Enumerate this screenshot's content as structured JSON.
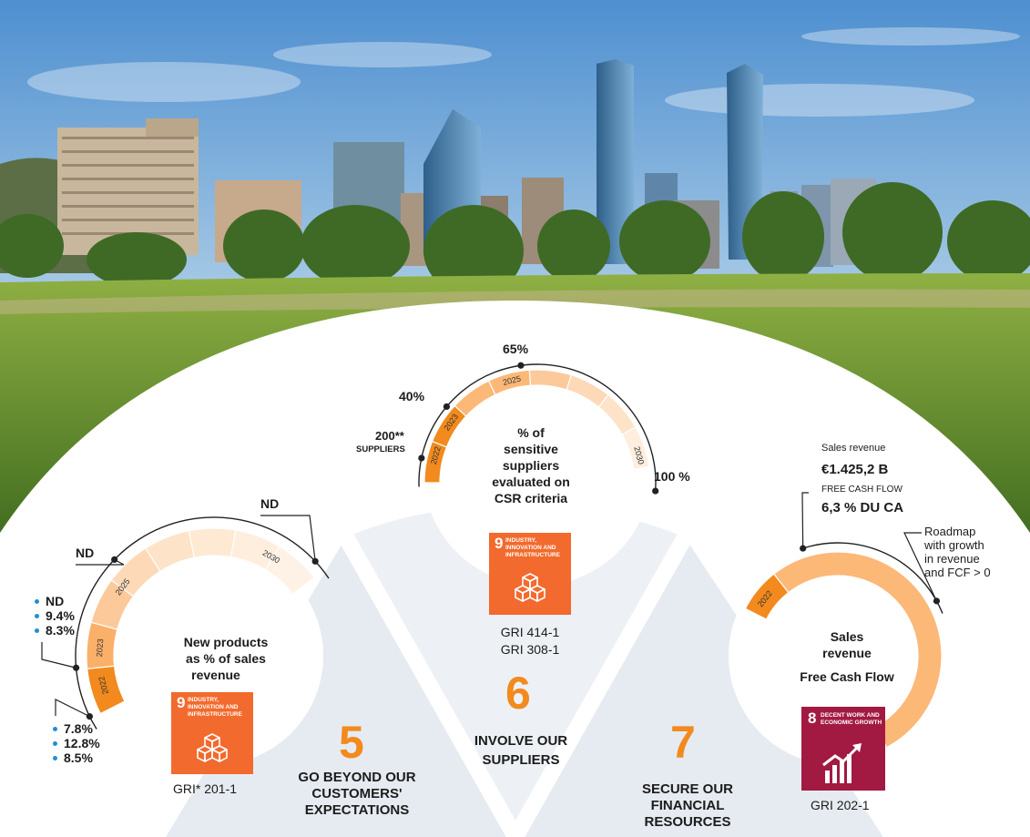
{
  "colors": {
    "orange_dark": "#f28a1e",
    "orange_light": "#fbb877",
    "sdg9": "#f26a2d",
    "sdg8": "#a21942",
    "bullet_blue": "#1f8fd6"
  },
  "pillars": [
    {
      "number": "5",
      "title_lines": [
        "GO BEYOND OUR",
        "CUSTOMERS'",
        "EXPECTATIONS"
      ],
      "kpi_lines": [
        "New products",
        "as % of sales",
        "revenue"
      ],
      "gauge": {
        "years": [
          "2022",
          "2023",
          "2025",
          "2030"
        ],
        "annotations": {
          "nd_2030": "ND",
          "nd_2025": "ND",
          "values_2023": [
            "ND",
            "9.4%",
            "8.3%"
          ],
          "values_2022": [
            "7.8%",
            "12.8%",
            "8.5%"
          ]
        }
      },
      "sdg": {
        "number": "9",
        "text": "INDUSTRY, INNOVATION AND INFRASTRUCTURE",
        "icon": "cubes-icon"
      },
      "gri": "GRI*  201-1"
    },
    {
      "number": "6",
      "title_lines": [
        "INVOLVE OUR",
        "SUPPLIERS"
      ],
      "kpi_lines": [
        "% of",
        "sensitive",
        "suppliers",
        "evaluated on",
        "CSR criteria"
      ],
      "gauge": {
        "years": [
          "2022",
          "2023",
          "2025",
          "2030"
        ],
        "annotations": {
          "baseline": "200**",
          "baseline_unit": "SUPPLIERS",
          "target_2023": "40%",
          "target_2025": "65%",
          "target_2030": "100 %"
        }
      },
      "sdg": {
        "number": "9",
        "text": "INDUSTRY, INNOVATION AND INFRASTRUCTURE",
        "icon": "cubes-icon"
      },
      "gri_lines": [
        "GRI 414-1",
        "GRI 308-1"
      ]
    },
    {
      "number": "7",
      "title_lines": [
        "SECURE OUR",
        "FINANCIAL",
        "RESOURCES"
      ],
      "kpi_lines": [
        "Sales",
        "revenue",
        "Free Cash Flow"
      ],
      "gauge": {
        "years": [
          "2022"
        ],
        "annotations": {
          "sales_label": "Sales revenue",
          "sales_value": "€1.425,2 B",
          "fcf_label": "FREE CASH FLOW",
          "fcf_value": "6,3 % DU CA",
          "roadmap_lines": [
            "Roadmap",
            "with growth",
            "in revenue",
            "and FCF > 0"
          ]
        }
      },
      "sdg": {
        "number": "8",
        "text": "DECENT WORK AND ECONOMIC GROWTH",
        "icon": "growth-chart-icon"
      },
      "gri": "GRI 202-1"
    }
  ]
}
